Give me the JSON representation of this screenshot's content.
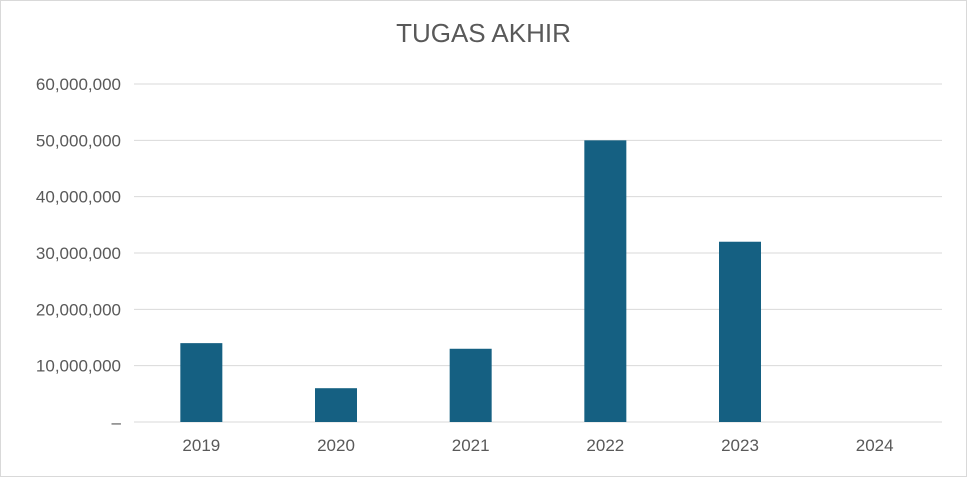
{
  "chart_data": {
    "type": "bar",
    "title": "TUGAS AKHIR",
    "categories": [
      "2019",
      "2020",
      "2021",
      "2022",
      "2023",
      "2024"
    ],
    "values": [
      14000000,
      6000000,
      13000000,
      50000000,
      32000000,
      0
    ],
    "yticks": [
      0,
      10000000,
      20000000,
      30000000,
      40000000,
      50000000,
      60000000
    ],
    "ytick_labels": [
      "–",
      "10,000,000",
      "20,000,000",
      "30,000,000",
      "40,000,000",
      "50,000,000",
      "60,000,000"
    ],
    "ylim": [
      0,
      60000000
    ],
    "grid": true,
    "legend": "none",
    "colors": {
      "bar": "#156082",
      "grid": "#d9d9d9",
      "text": "#595959"
    }
  }
}
